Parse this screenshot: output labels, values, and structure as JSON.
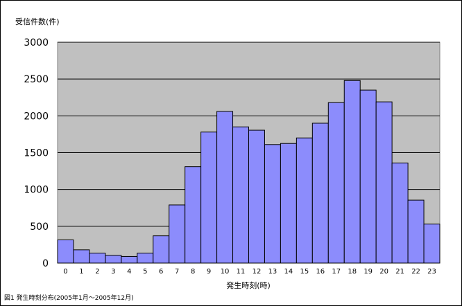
{
  "chart_data": {
    "type": "bar",
    "ylabel": "受信件数(件)",
    "xlabel": "発生時刻(時)",
    "caption": "図1 発生時刻分布(2005年1月～2005年12月)",
    "ylim": [
      0,
      3000
    ],
    "yticks": [
      0,
      500,
      1000,
      1500,
      2000,
      2500,
      3000
    ],
    "grid": true,
    "categories": [
      "0",
      "1",
      "2",
      "3",
      "4",
      "5",
      "6",
      "7",
      "8",
      "9",
      "10",
      "11",
      "12",
      "13",
      "14",
      "15",
      "16",
      "17",
      "18",
      "19",
      "20",
      "21",
      "22",
      "23"
    ],
    "values": [
      315,
      180,
      135,
      105,
      90,
      135,
      370,
      790,
      1310,
      1780,
      2060,
      1850,
      1805,
      1610,
      1625,
      1700,
      1900,
      2180,
      2480,
      2350,
      2190,
      1360,
      855,
      530
    ]
  },
  "colors": {
    "bar_fill": "#8c8cfc",
    "bar_stroke": "#000000",
    "plot_bg": "#c0c0c0",
    "grid": "#000000"
  }
}
